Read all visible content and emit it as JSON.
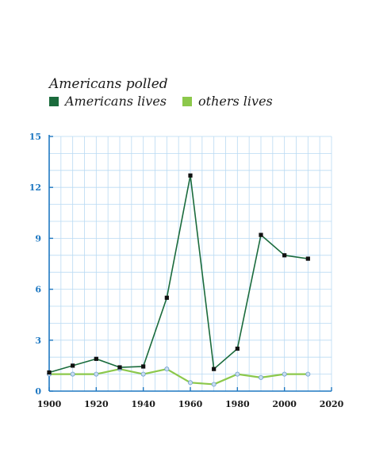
{
  "legend": {
    "title": "Americans polled",
    "items": [
      {
        "label": "Americans lives",
        "color": "#1a6b3c"
      },
      {
        "label": "others lives",
        "color": "#8cc84b"
      }
    ]
  },
  "colors": {
    "grid": "#b9daf3",
    "axis": "#1e78c2",
    "tick_label_y": "#1e78c2",
    "tick_label_x": "#1b1b1b",
    "marker_fill_series1": "#111111",
    "marker_fill_series2": "#c8dcf0"
  },
  "chart_data": {
    "type": "line",
    "title": "",
    "xlabel": "",
    "ylabel": "",
    "x": [
      1900,
      1910,
      1920,
      1930,
      1940,
      1950,
      1960,
      1970,
      1980,
      1990,
      2000,
      2010
    ],
    "series": [
      {
        "name": "Americans lives",
        "color": "#1a6b3c",
        "values": [
          1.1,
          1.5,
          1.9,
          1.4,
          1.45,
          5.5,
          12.7,
          1.3,
          2.5,
          9.2,
          8.0,
          7.8
        ]
      },
      {
        "name": "others lives",
        "color": "#8cc84b",
        "values": [
          1.0,
          1.0,
          1.0,
          1.3,
          1.0,
          1.3,
          0.5,
          0.4,
          1.0,
          0.8,
          1.0,
          1.0
        ]
      }
    ],
    "xlim": [
      1900,
      2020
    ],
    "ylim": [
      0,
      15
    ],
    "x_ticks": [
      "1900",
      "1920",
      "1940",
      "1960",
      "1980",
      "2000",
      "2020"
    ],
    "x_tick_values": [
      1900,
      1920,
      1940,
      1960,
      1980,
      2000,
      2020
    ],
    "y_ticks": [
      "0",
      "3",
      "6",
      "9",
      "12",
      "15"
    ],
    "y_tick_values": [
      0,
      3,
      6,
      9,
      12,
      15
    ],
    "grid": true,
    "legend_position": "top-left"
  }
}
